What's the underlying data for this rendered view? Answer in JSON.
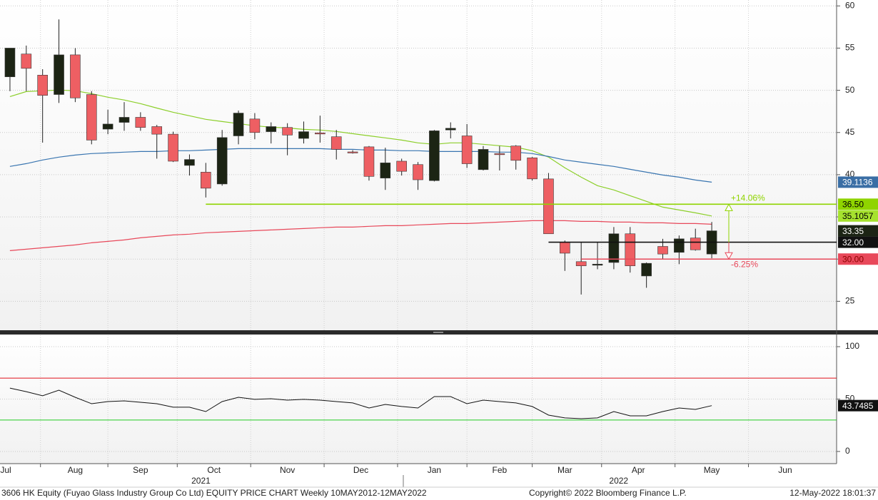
{
  "chart_data": [
    {
      "type": "candlestick",
      "up_color": "#1c2414",
      "down_color": "#ee5f63",
      "open": [
        51.6,
        54.3,
        51.8,
        49.5,
        54.2,
        49.5,
        45.4,
        46.2,
        46.8,
        45.7,
        44.8,
        41.1,
        40.3,
        38.9,
        44.6,
        46.6,
        45.1,
        45.6,
        44.3,
        44.95,
        44.5,
        42.7,
        43.3,
        39.6,
        41.6,
        41.2,
        39.3,
        45.3,
        44.6,
        40.6,
        42.5,
        43.4,
        42.0,
        39.5,
        32.0,
        29.7,
        29.3,
        29.6,
        33.0,
        28.0,
        31.5,
        30.8,
        32.5,
        30.6
      ],
      "high": [
        55.0,
        55.3,
        52.5,
        58.4,
        55.0,
        49.9,
        47.7,
        48.6,
        47.4,
        45.9,
        45.1,
        42.4,
        41.4,
        45.3,
        47.6,
        47.3,
        46.2,
        46.1,
        46.3,
        47.0,
        45.3,
        42.9,
        43.4,
        43.2,
        41.9,
        41.5,
        45.3,
        46.2,
        46.0,
        43.4,
        43.4,
        43.5,
        42.1,
        40.2,
        32.2,
        32.0,
        32.0,
        33.8,
        33.8,
        29.6,
        32.4,
        32.8,
        33.6,
        34.4
      ],
      "low": [
        49.9,
        49.9,
        43.8,
        48.5,
        48.6,
        43.6,
        44.8,
        45.2,
        45.2,
        41.9,
        41.5,
        39.9,
        37.3,
        38.7,
        43.6,
        44.2,
        43.7,
        42.3,
        43.7,
        43.8,
        41.8,
        42.5,
        39.3,
        38.2,
        39.9,
        38.2,
        39.2,
        44.3,
        40.8,
        40.5,
        40.5,
        40.6,
        39.3,
        33.0,
        28.6,
        25.8,
        28.8,
        28.8,
        28.4,
        26.6,
        30.0,
        29.4,
        31.0,
        30.1
      ],
      "close": [
        55.0,
        52.6,
        49.4,
        54.2,
        49.1,
        44.1,
        46.0,
        46.8,
        45.6,
        44.8,
        41.6,
        41.8,
        38.4,
        44.4,
        47.3,
        45.0,
        45.7,
        44.7,
        45.1,
        44.85,
        43.0,
        42.6,
        39.8,
        41.4,
        40.4,
        39.4,
        45.2,
        45.5,
        41.3,
        43.0,
        42.4,
        41.7,
        39.5,
        33.0,
        30.7,
        29.2,
        29.4,
        33.0,
        29.2,
        29.5,
        30.6,
        32.4,
        31.1,
        33.35
      ],
      "series": [
        {
          "color": "#8ccf2a",
          "label_color": "#a6e22e",
          "label_text_color": "#000",
          "values": [
            49.26,
            49.85,
            49.94,
            50.03,
            49.94,
            49.6,
            49.18,
            48.85,
            48.42,
            47.9,
            47.4,
            46.98,
            46.56,
            46.3,
            46.05,
            45.8,
            45.63,
            45.54,
            45.37,
            45.29,
            45.12,
            44.86,
            44.61,
            44.36,
            44.1,
            43.77,
            43.6,
            43.77,
            43.77,
            43.6,
            43.43,
            43.26,
            42.84,
            42.08,
            40.81,
            39.71,
            38.7,
            38.19,
            37.51,
            36.84,
            36.16,
            35.82,
            35.48,
            35.1057
          ]
        },
        {
          "color": "#3975b0",
          "label_color": "#3a6ea5",
          "label_text_color": "#fff",
          "values": [
            40.98,
            41.31,
            41.74,
            42.08,
            42.33,
            42.5,
            42.58,
            42.67,
            42.75,
            42.75,
            42.84,
            42.84,
            42.92,
            43.0,
            43.09,
            43.09,
            43.09,
            43.09,
            43.09,
            43.09,
            43.0,
            43.0,
            42.92,
            42.92,
            42.84,
            42.84,
            42.75,
            42.75,
            42.75,
            42.75,
            42.67,
            42.67,
            42.5,
            42.16,
            41.74,
            41.48,
            41.23,
            40.98,
            40.64,
            40.3,
            39.96,
            39.71,
            39.37,
            39.1136
          ]
        },
        {
          "color": "#e8485a",
          "values": [
            31.0,
            31.17,
            31.34,
            31.51,
            31.68,
            31.93,
            32.1,
            32.27,
            32.52,
            32.69,
            32.86,
            32.95,
            33.12,
            33.2,
            33.28,
            33.37,
            33.45,
            33.54,
            33.62,
            33.71,
            33.79,
            33.79,
            33.88,
            33.96,
            33.96,
            34.05,
            34.13,
            34.21,
            34.21,
            34.3,
            34.38,
            34.47,
            34.55,
            34.55,
            34.55,
            34.47,
            34.47,
            34.38,
            34.38,
            34.3,
            34.3,
            34.21,
            34.21,
            34.13
          ]
        }
      ],
      "levels": [
        {
          "value": 36.5,
          "label": "36.50",
          "color": "#8fd400",
          "label_text_color": "#000",
          "from": 12
        },
        {
          "value": 32.0,
          "label": "32.00",
          "color": "#111",
          "label_text_color": "#fff",
          "from": 33
        },
        {
          "value": 30.0,
          "label": "30.00",
          "color": "#e8485a",
          "label_text_color": "#8a0000",
          "from": 35
        }
      ],
      "annotations": [
        {
          "value": 14.06,
          "label": "+14.06%",
          "color": "#8fd400"
        },
        {
          "value": -6.25,
          "label": "-6.25%",
          "color": "#e8485a"
        }
      ],
      "ylim": [
        21.4,
        60.7
      ],
      "yticks": [
        25,
        30,
        35,
        40,
        45,
        50,
        55,
        60
      ],
      "xlim": [
        -0.61,
        50.65
      ],
      "xticks": [
        {
          "value": -0.26,
          "label": "Jul"
        },
        {
          "value": 4.0,
          "label": "Aug"
        },
        {
          "value": 8.0,
          "label": "Sep"
        },
        {
          "value": 12.5,
          "label": "Oct"
        },
        {
          "value": 17.0,
          "label": "Nov"
        },
        {
          "value": 21.5,
          "label": "Dec"
        },
        {
          "value": 26.0,
          "label": "Jan"
        },
        {
          "value": 30.0,
          "label": "Feb"
        },
        {
          "value": 34.0,
          "label": "Mar"
        },
        {
          "value": 38.5,
          "label": "Apr"
        },
        {
          "value": 43.0,
          "label": "May"
        },
        {
          "value": 47.5,
          "label": "Jun"
        }
      ],
      "year_labels": [
        {
          "value": 11.7,
          "label": "2021"
        },
        {
          "value": 37.3,
          "label": "2022"
        }
      ],
      "grid": true
    },
    {
      "type": "line",
      "color": "#111",
      "label_color": "#111",
      "label_text_color": "#fff",
      "values": [
        60.5,
        57.1,
        53.1,
        58.5,
        51.7,
        45.6,
        47.6,
        48.3,
        46.9,
        45.6,
        42.2,
        42.2,
        38.1,
        47.6,
        51.7,
        49.7,
        50.3,
        49.0,
        49.7,
        49.0,
        47.6,
        46.3,
        41.5,
        44.9,
        42.9,
        41.5,
        52.4,
        52.4,
        45.6,
        49.0,
        47.6,
        46.3,
        42.9,
        34.7,
        32.0,
        31.3,
        32.0,
        38.1,
        34.0,
        34.0,
        38.1,
        41.5,
        40.1,
        43.7485
      ],
      "levels": [
        {
          "value": 70,
          "color": "#e0101a"
        },
        {
          "value": 30,
          "color": "#22cc22"
        }
      ],
      "ylim": [
        -11.6,
        110.9
      ],
      "yticks": [
        0,
        50,
        100
      ],
      "xlim": [
        -0.61,
        50.65
      ],
      "grid": true
    }
  ],
  "footer": {
    "left": "3606 HK Equity (Fuyao Glass Industry Group Co Ltd) EQUITY PRICE CHART  Weekly 10MAY2012-12MAY2022",
    "center": "Copyright© 2022 Bloomberg Finance L.P.",
    "right": "12-May-2022 18:01:37"
  }
}
